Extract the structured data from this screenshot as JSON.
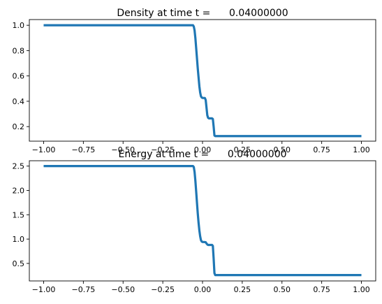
{
  "chart_data": [
    {
      "type": "line",
      "title": "Density at time t =      0.04000000",
      "xlim": [
        -1.09,
        1.09
      ],
      "ylim": [
        0.085,
        1.045
      ],
      "x_ticks": [
        -1.0,
        -0.75,
        -0.5,
        -0.25,
        0.0,
        0.25,
        0.5,
        0.75,
        1.0
      ],
      "x_tick_labels": [
        "−1.00",
        "−0.75",
        "−0.50",
        "−0.25",
        "0.00",
        "0.25",
        "0.50",
        "0.75",
        "1.00"
      ],
      "y_ticks": [
        0.2,
        0.4,
        0.6,
        0.8,
        1.0
      ],
      "y_tick_labels": [
        "0.2",
        "0.4",
        "0.6",
        "0.8",
        "1.0"
      ],
      "grid": false,
      "series": [
        {
          "color": "#1f77b4",
          "x": [
            -1.0,
            -0.9,
            -0.8,
            -0.7,
            -0.6,
            -0.5,
            -0.4,
            -0.3,
            -0.2,
            -0.1,
            -0.06,
            -0.055,
            -0.05,
            -0.045,
            -0.04,
            -0.035,
            -0.03,
            -0.025,
            -0.02,
            -0.015,
            -0.01,
            -0.005,
            0.0,
            0.005,
            0.01,
            0.015,
            0.02,
            0.025,
            0.03,
            0.035,
            0.04,
            0.045,
            0.05,
            0.055,
            0.06,
            0.065,
            0.07,
            0.075,
            0.08,
            0.1,
            0.2,
            0.3,
            0.4,
            0.5,
            0.6,
            0.7,
            0.8,
            0.9,
            1.0
          ],
          "y": [
            1.0,
            1.0,
            1.0,
            1.0,
            1.0,
            1.0,
            1.0,
            1.0,
            1.0,
            1.0,
            1.0,
            0.99,
            0.96,
            0.9,
            0.82,
            0.74,
            0.66,
            0.59,
            0.52,
            0.47,
            0.44,
            0.43,
            0.426,
            0.426,
            0.426,
            0.425,
            0.41,
            0.35,
            0.29,
            0.27,
            0.265,
            0.265,
            0.265,
            0.265,
            0.265,
            0.26,
            0.2,
            0.13,
            0.125,
            0.125,
            0.125,
            0.125,
            0.125,
            0.125,
            0.125,
            0.125,
            0.125,
            0.125,
            0.125
          ]
        }
      ]
    },
    {
      "type": "line",
      "title": "Energy at time t =      0.04000000",
      "xlim": [
        -1.09,
        1.09
      ],
      "ylim": [
        0.14,
        2.61
      ],
      "x_ticks": [
        -1.0,
        -0.75,
        -0.5,
        -0.25,
        0.0,
        0.25,
        0.5,
        0.75,
        1.0
      ],
      "x_tick_labels": [
        "−1.00",
        "−0.75",
        "−0.50",
        "−0.25",
        "0.00",
        "0.25",
        "0.50",
        "0.75",
        "1.00"
      ],
      "y_ticks": [
        0.5,
        1.0,
        1.5,
        2.0,
        2.5
      ],
      "y_tick_labels": [
        "0.5",
        "1.0",
        "1.5",
        "2.0",
        "2.5"
      ],
      "grid": false,
      "series": [
        {
          "color": "#1f77b4",
          "x": [
            -1.0,
            -0.9,
            -0.8,
            -0.7,
            -0.6,
            -0.5,
            -0.4,
            -0.3,
            -0.2,
            -0.1,
            -0.06,
            -0.055,
            -0.05,
            -0.045,
            -0.04,
            -0.035,
            -0.03,
            -0.025,
            -0.02,
            -0.015,
            -0.01,
            -0.005,
            0.0,
            0.01,
            0.02,
            0.025,
            0.03,
            0.035,
            0.04,
            0.05,
            0.06,
            0.065,
            0.07,
            0.075,
            0.08,
            0.1,
            0.2,
            0.3,
            0.4,
            0.5,
            0.6,
            0.7,
            0.8,
            0.9,
            1.0
          ],
          "y": [
            2.5,
            2.5,
            2.5,
            2.5,
            2.5,
            2.5,
            2.5,
            2.5,
            2.5,
            2.5,
            2.5,
            2.48,
            2.38,
            2.2,
            1.98,
            1.75,
            1.53,
            1.34,
            1.18,
            1.06,
            0.98,
            0.95,
            0.94,
            0.94,
            0.935,
            0.91,
            0.89,
            0.88,
            0.88,
            0.88,
            0.88,
            0.86,
            0.6,
            0.3,
            0.26,
            0.26,
            0.26,
            0.26,
            0.26,
            0.26,
            0.26,
            0.26,
            0.26,
            0.26,
            0.26
          ]
        }
      ]
    }
  ]
}
